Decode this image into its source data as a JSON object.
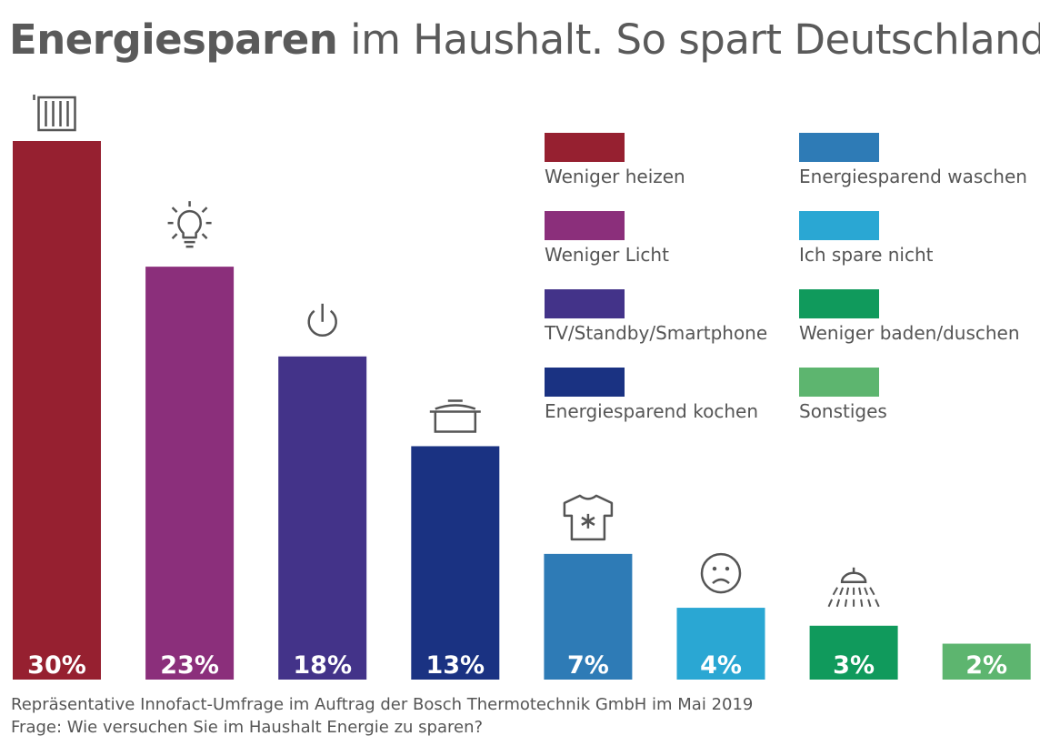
{
  "title": {
    "bold": "Energiesparen",
    "rest": " im Haushalt. So spart Deutschland!"
  },
  "chart_data": {
    "type": "bar",
    "categories": [
      "Weniger heizen",
      "Weniger Licht",
      "TV/Standby/Smartphone",
      "Energiesparend kochen",
      "Energiesparend waschen",
      "Ich spare nicht",
      "Weniger baden/duschen",
      "Sonstiges"
    ],
    "values": [
      30,
      23,
      18,
      13,
      7,
      4,
      3,
      2
    ],
    "value_labels": [
      "30%",
      "23%",
      "18%",
      "13%",
      "7%",
      "4%",
      "3%",
      "2%"
    ],
    "colors": [
      "#962030",
      "#8b2f7b",
      "#433389",
      "#1a3282",
      "#2e7bb6",
      "#2aa7d3",
      "#109a5c",
      "#5db56f"
    ],
    "icons": [
      "radiator-icon",
      "lightbulb-icon",
      "power-icon",
      "cooking-pot-icon",
      "shirt-icon",
      "sad-face-icon",
      "shower-icon",
      ""
    ],
    "ylim": [
      0,
      30
    ],
    "grid": false,
    "legend_position": "top-right"
  },
  "footnotes": [
    "Repräsentative Innofact-Umfrage im Auftrag der Bosch Thermotechnik GmbH im Mai 2019",
    "Frage: Wie versuchen Sie im Haushalt Energie zu sparen?"
  ]
}
